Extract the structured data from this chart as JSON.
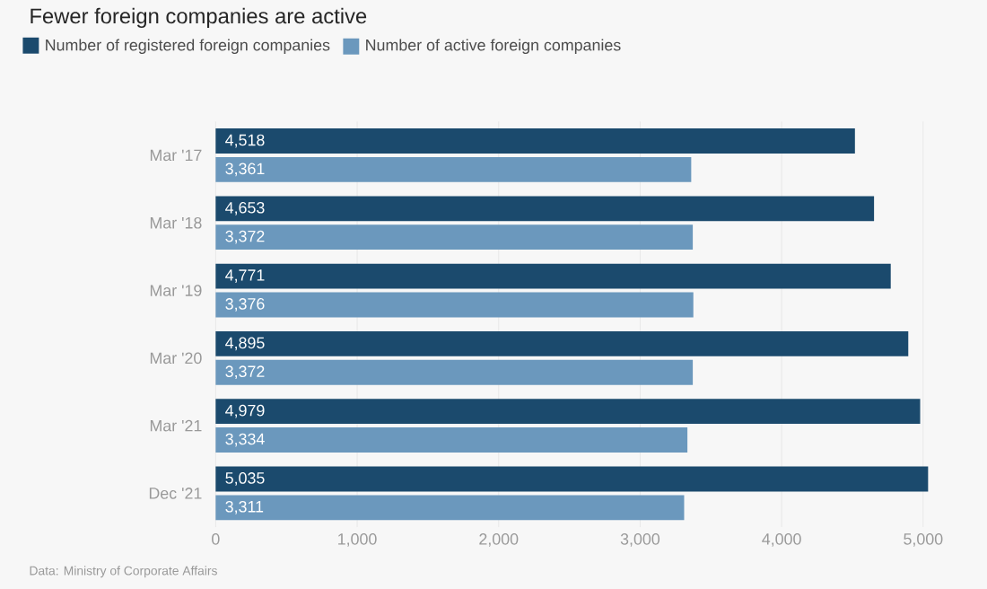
{
  "chart_data": {
    "type": "bar",
    "orientation": "horizontal",
    "title": "Fewer foreign companies are active",
    "categories": [
      "Mar '17",
      "Mar '18",
      "Mar '19",
      "Mar '20",
      "Mar '21",
      "Dec '21"
    ],
    "series": [
      {
        "name": "Number of registered foreign companies",
        "color": "#1b4a6d",
        "values": [
          4518,
          4653,
          4771,
          4895,
          4979,
          5035
        ],
        "value_labels": [
          "4,518",
          "4,653",
          "4,771",
          "4,895",
          "4,979",
          "5,035"
        ]
      },
      {
        "name": "Number of active foreign companies",
        "color": "#6b98bd",
        "values": [
          3361,
          3372,
          3376,
          3372,
          3334,
          3311
        ],
        "value_labels": [
          "3,361",
          "3,372",
          "3,376",
          "3,372",
          "3,334",
          "3,311"
        ]
      }
    ],
    "xlim": [
      0,
      5035
    ],
    "xticks": [
      0,
      {
        "value": 1000,
        "label": "1,000"
      },
      {
        "value": 2000,
        "label": "2,000"
      },
      {
        "value": 3000,
        "label": "3,000"
      },
      {
        "value": 4000,
        "label": "4,000"
      },
      {
        "value": 5000,
        "label": "5,000"
      }
    ],
    "grid": "x",
    "legend": "top left",
    "annotations": [
      "Data: Ministry of Corporate Affairs"
    ]
  }
}
